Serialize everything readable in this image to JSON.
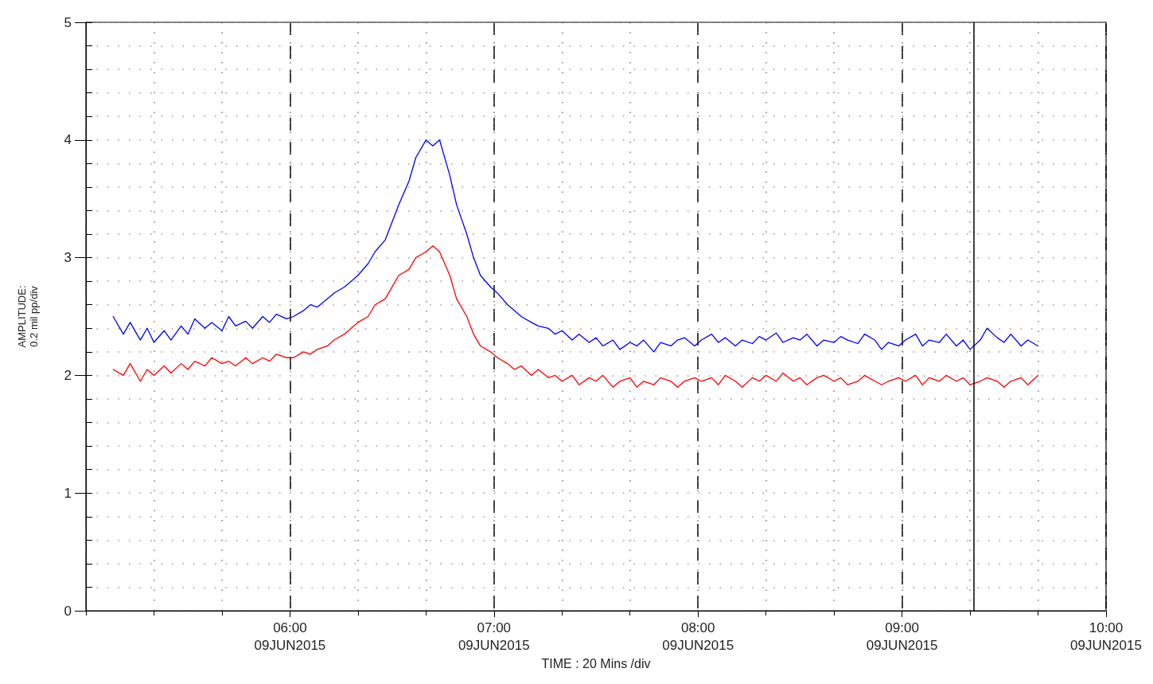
{
  "chart_data": {
    "type": "line",
    "xlabel": "TIME : 20 Mins /div",
    "ylabel": "AMPLITUDE:\n0.2 mil pp/div",
    "x": [
      "2015-06-09T05:08",
      "2015-06-09T05:11",
      "2015-06-09T05:13",
      "2015-06-09T05:16",
      "2015-06-09T05:18",
      "2015-06-09T05:20",
      "2015-06-09T05:23",
      "2015-06-09T05:25",
      "2015-06-09T05:28",
      "2015-06-09T05:30",
      "2015-06-09T05:32",
      "2015-06-09T05:35",
      "2015-06-09T05:37",
      "2015-06-09T05:40",
      "2015-06-09T05:42",
      "2015-06-09T05:44",
      "2015-06-09T05:47",
      "2015-06-09T05:49",
      "2015-06-09T05:52",
      "2015-06-09T05:54",
      "2015-06-09T05:56",
      "2015-06-09T05:59",
      "2015-06-09T06:01",
      "2015-06-09T06:04",
      "2015-06-09T06:06",
      "2015-06-09T06:08",
      "2015-06-09T06:11",
      "2015-06-09T06:13",
      "2015-06-09T06:16",
      "2015-06-09T06:18",
      "2015-06-09T06:20",
      "2015-06-09T06:23",
      "2015-06-09T06:25",
      "2015-06-09T06:28",
      "2015-06-09T06:30",
      "2015-06-09T06:32",
      "2015-06-09T06:35",
      "2015-06-09T06:37",
      "2015-06-09T06:40",
      "2015-06-09T06:42",
      "2015-06-09T06:44",
      "2015-06-09T06:47",
      "2015-06-09T06:49",
      "2015-06-09T06:52",
      "2015-06-09T06:54",
      "2015-06-09T06:56",
      "2015-06-09T06:59",
      "2015-06-09T07:01",
      "2015-06-09T07:04",
      "2015-06-09T07:06",
      "2015-06-09T07:08",
      "2015-06-09T07:11",
      "2015-06-09T07:13",
      "2015-06-09T07:16",
      "2015-06-09T07:18",
      "2015-06-09T07:20",
      "2015-06-09T07:23",
      "2015-06-09T07:25",
      "2015-06-09T07:28",
      "2015-06-09T07:30",
      "2015-06-09T07:32",
      "2015-06-09T07:35",
      "2015-06-09T07:37",
      "2015-06-09T07:40",
      "2015-06-09T07:42",
      "2015-06-09T07:44",
      "2015-06-09T07:47",
      "2015-06-09T07:49",
      "2015-06-09T07:52",
      "2015-06-09T07:54",
      "2015-06-09T07:56",
      "2015-06-09T07:59",
      "2015-06-09T08:01",
      "2015-06-09T08:04",
      "2015-06-09T08:06",
      "2015-06-09T08:08",
      "2015-06-09T08:11",
      "2015-06-09T08:13",
      "2015-06-09T08:16",
      "2015-06-09T08:18",
      "2015-06-09T08:20",
      "2015-06-09T08:23",
      "2015-06-09T08:25",
      "2015-06-09T08:28",
      "2015-06-09T08:30",
      "2015-06-09T08:32",
      "2015-06-09T08:35",
      "2015-06-09T08:37",
      "2015-06-09T08:40",
      "2015-06-09T08:42",
      "2015-06-09T08:44",
      "2015-06-09T08:47",
      "2015-06-09T08:49",
      "2015-06-09T08:52",
      "2015-06-09T08:54",
      "2015-06-09T08:56",
      "2015-06-09T08:59",
      "2015-06-09T09:01",
      "2015-06-09T09:04",
      "2015-06-09T09:06",
      "2015-06-09T09:08",
      "2015-06-09T09:11",
      "2015-06-09T09:13",
      "2015-06-09T09:16",
      "2015-06-09T09:18",
      "2015-06-09T09:20",
      "2015-06-09T09:23",
      "2015-06-09T09:25",
      "2015-06-09T09:28",
      "2015-06-09T09:30",
      "2015-06-09T09:32",
      "2015-06-09T09:35",
      "2015-06-09T09:37",
      "2015-06-09T09:40"
    ],
    "series": [
      {
        "color": "#0000ff",
        "values": [
          2.5,
          2.35,
          2.45,
          2.3,
          2.4,
          2.28,
          2.38,
          2.3,
          2.42,
          2.35,
          2.48,
          2.4,
          2.45,
          2.38,
          2.5,
          2.42,
          2.46,
          2.4,
          2.5,
          2.45,
          2.52,
          2.48,
          2.5,
          2.55,
          2.6,
          2.58,
          2.65,
          2.7,
          2.75,
          2.8,
          2.85,
          2.95,
          3.05,
          3.15,
          3.3,
          3.45,
          3.65,
          3.85,
          4.0,
          3.95,
          4.0,
          3.7,
          3.45,
          3.2,
          3.0,
          2.85,
          2.75,
          2.7,
          2.6,
          2.55,
          2.5,
          2.45,
          2.42,
          2.4,
          2.35,
          2.38,
          2.3,
          2.35,
          2.28,
          2.32,
          2.25,
          2.3,
          2.22,
          2.28,
          2.25,
          2.3,
          2.2,
          2.28,
          2.25,
          2.3,
          2.32,
          2.25,
          2.3,
          2.35,
          2.28,
          2.32,
          2.25,
          2.3,
          2.27,
          2.33,
          2.3,
          2.36,
          2.28,
          2.32,
          2.3,
          2.35,
          2.25,
          2.3,
          2.28,
          2.33,
          2.3,
          2.27,
          2.35,
          2.3,
          2.22,
          2.28,
          2.25,
          2.3,
          2.35,
          2.25,
          2.3,
          2.28,
          2.35,
          2.25,
          2.3,
          2.22,
          2.3,
          2.4,
          2.32,
          2.28,
          2.35,
          2.25,
          2.3,
          2.25
        ]
      },
      {
        "color": "#ff0000",
        "values": [
          2.05,
          2.0,
          2.1,
          1.95,
          2.05,
          2.0,
          2.08,
          2.02,
          2.1,
          2.05,
          2.12,
          2.08,
          2.15,
          2.1,
          2.12,
          2.08,
          2.15,
          2.1,
          2.15,
          2.12,
          2.18,
          2.15,
          2.15,
          2.2,
          2.18,
          2.22,
          2.25,
          2.3,
          2.35,
          2.4,
          2.45,
          2.5,
          2.6,
          2.65,
          2.75,
          2.85,
          2.9,
          3.0,
          3.05,
          3.1,
          3.05,
          2.85,
          2.65,
          2.5,
          2.35,
          2.25,
          2.2,
          2.15,
          2.1,
          2.05,
          2.08,
          2.0,
          2.05,
          1.98,
          2.0,
          1.95,
          2.0,
          1.92,
          1.98,
          1.95,
          2.0,
          1.9,
          1.95,
          1.98,
          1.9,
          1.95,
          1.92,
          1.98,
          1.95,
          1.9,
          1.95,
          1.98,
          1.95,
          1.98,
          1.92,
          2.0,
          1.95,
          1.9,
          1.98,
          1.95,
          2.0,
          1.95,
          2.02,
          1.95,
          1.98,
          1.92,
          1.98,
          2.0,
          1.95,
          1.98,
          1.92,
          1.95,
          2.0,
          1.95,
          1.92,
          1.95,
          1.98,
          1.95,
          2.0,
          1.92,
          1.98,
          1.95,
          2.0,
          1.95,
          1.98,
          1.92,
          1.95,
          1.98,
          1.95,
          1.9,
          1.95,
          1.98,
          1.92,
          2.0
        ]
      }
    ],
    "xlim": [
      "2015-06-09T05:00",
      "2015-06-09T10:00"
    ],
    "xticks": [
      {
        "value": "2015-06-09T05:00",
        "label": null
      },
      {
        "value": "2015-06-09T05:20",
        "label": null
      },
      {
        "value": "2015-06-09T05:40",
        "label": null
      },
      {
        "value": "2015-06-09T06:00",
        "label": "06:00\n09JUN2015"
      },
      {
        "value": "2015-06-09T06:20",
        "label": null
      },
      {
        "value": "2015-06-09T06:40",
        "label": null
      },
      {
        "value": "2015-06-09T07:00",
        "label": "07:00\n09JUN2015"
      },
      {
        "value": "2015-06-09T07:20",
        "label": null
      },
      {
        "value": "2015-06-09T07:40",
        "label": null
      },
      {
        "value": "2015-06-09T08:00",
        "label": "08:00\n09JUN2015"
      },
      {
        "value": "2015-06-09T08:20",
        "label": null
      },
      {
        "value": "2015-06-09T08:40",
        "label": null
      },
      {
        "value": "2015-06-09T09:00",
        "label": "09:00\n09JUN2015"
      },
      {
        "value": "2015-06-09T09:20",
        "label": null
      },
      {
        "value": "2015-06-09T09:40",
        "label": null
      },
      {
        "value": "2015-06-09T10:00",
        "label": "10:00\n09JUN2015"
      }
    ],
    "ylim": [
      0,
      5
    ],
    "yticks": [
      0,
      {
        "value": 0.2,
        "label": null
      },
      {
        "value": 0.4,
        "label": null
      },
      {
        "value": 0.6,
        "label": null
      },
      {
        "value": 0.8,
        "label": null
      },
      1,
      {
        "value": 1.2,
        "label": null
      },
      {
        "value": 1.4,
        "label": null
      },
      {
        "value": 1.6,
        "label": null
      },
      {
        "value": 1.8,
        "label": null
      },
      2,
      {
        "value": 2.2,
        "label": null
      },
      {
        "value": 2.4,
        "label": null
      },
      {
        "value": 2.6,
        "label": null
      },
      {
        "value": 2.8,
        "label": null
      },
      3,
      {
        "value": 3.2,
        "label": null
      },
      {
        "value": 3.4,
        "label": null
      },
      {
        "value": 3.6,
        "label": null
      },
      {
        "value": 3.8,
        "label": null
      },
      4,
      {
        "value": 4.2,
        "label": null
      },
      {
        "value": 4.4,
        "label": null
      },
      {
        "value": 4.6,
        "label": null
      },
      {
        "value": 4.8,
        "label": null
      },
      5
    ],
    "grid": true,
    "marker": "none",
    "line_style": "solid",
    "ref_lines": [
      {
        "axis": "x",
        "value": "2015-06-09T09:21",
        "label": null,
        "color": "#000000",
        "line_style": "solid"
      }
    ]
  }
}
